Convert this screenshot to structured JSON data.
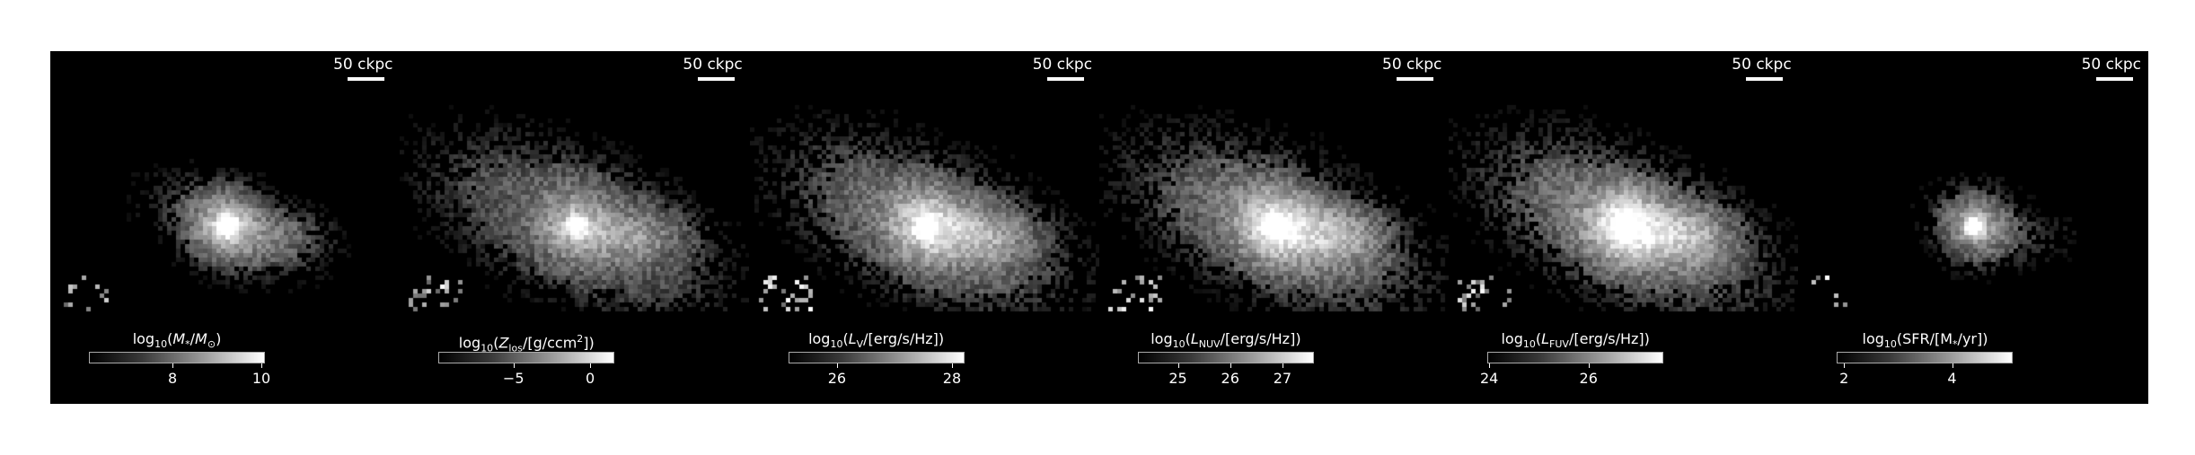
{
  "scale_bar_label": "50 ckpc",
  "panels": [
    {
      "quantity": "stellar-mass",
      "colorbar_html": "log<sub>10</sub>(<i>M</i><sub>*</sub>/<i>M</i><sub>⊙</sub>)",
      "ticks": [
        {
          "label": "8",
          "frac": 0.48
        },
        {
          "label": "10",
          "frac": 0.99
        }
      ],
      "map": {
        "cores": [
          [
            0.2,
            0.1
          ],
          [
            0.12,
            0.45
          ]
        ],
        "spread": 0.55,
        "brightness": 0.8
      }
    },
    {
      "quantity": "metallicity",
      "colorbar_html": "log<sub>10</sub>(<i>Z</i><sub>los</sub>/[g/ccm<sup>2</sup>])",
      "ticks": [
        {
          "label": "−5",
          "frac": 0.43
        },
        {
          "label": "0",
          "frac": 0.87
        }
      ],
      "map": {
        "cores": [
          [
            0.32,
            0.1
          ],
          [
            0.22,
            0.5
          ]
        ],
        "spread": 1.0,
        "brightness": 0.6
      }
    },
    {
      "quantity": "v-band-luminosity",
      "colorbar_html": "log<sub>10</sub>(<i>L</i><sub>V</sub>/[erg/s/Hz])",
      "ticks": [
        {
          "label": "26",
          "frac": 0.28
        },
        {
          "label": "28",
          "frac": 0.94
        }
      ],
      "map": {
        "cores": [
          [
            0.28,
            0.1
          ],
          [
            0.2,
            0.5
          ]
        ],
        "spread": 1.0,
        "brightness": 0.75
      }
    },
    {
      "quantity": "nuv-luminosity",
      "colorbar_html": "log<sub>10</sub>(<i>L</i><sub>NUV</sub>/[erg/s/Hz])",
      "ticks": [
        {
          "label": "25",
          "frac": 0.23
        },
        {
          "label": "26",
          "frac": 0.53
        },
        {
          "label": "27",
          "frac": 0.83
        }
      ],
      "map": {
        "cores": [
          [
            0.34,
            0.1
          ],
          [
            0.28,
            0.5
          ]
        ],
        "spread": 1.0,
        "brightness": 0.8
      }
    },
    {
      "quantity": "fuv-luminosity",
      "colorbar_html": "log<sub>10</sub>(<i>L</i><sub>FUV</sub>/[erg/s/Hz])",
      "ticks": [
        {
          "label": "24",
          "frac": 0.01
        },
        {
          "label": "26",
          "frac": 0.58
        }
      ],
      "map": {
        "cores": [
          [
            0.36,
            0.1
          ],
          [
            0.3,
            0.5
          ]
        ],
        "spread": 1.0,
        "brightness": 0.85
      }
    },
    {
      "quantity": "star-formation-rate",
      "colorbar_html": "log<sub>10</sub>(SFR/[M<sub>*</sub>/yr])",
      "ticks": [
        {
          "label": "2",
          "frac": 0.04
        },
        {
          "label": "4",
          "frac": 0.66
        }
      ],
      "map": {
        "cores": [
          [
            0.22,
            0.1
          ],
          [
            0.1,
            0.5
          ]
        ],
        "spread": 0.3,
        "brightness": 0.75
      }
    }
  ]
}
